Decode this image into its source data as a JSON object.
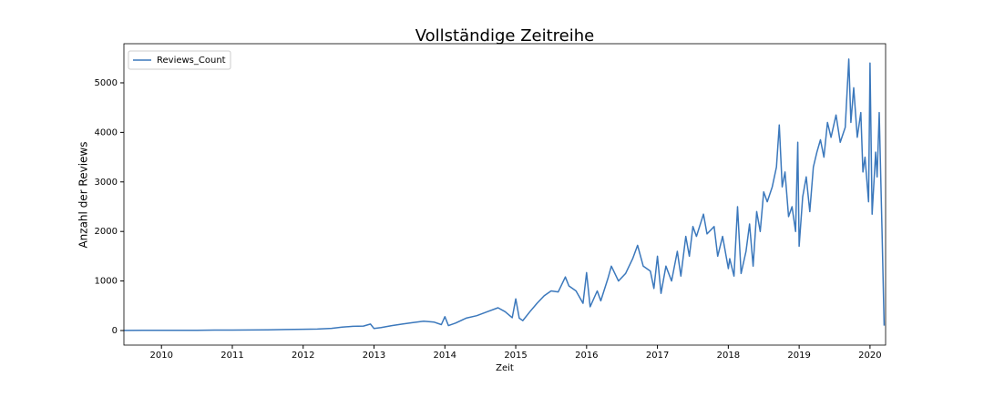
{
  "chart_data": {
    "type": "line",
    "title": "Vollständige Zeitreihe",
    "x_label": "Zeit",
    "y_label": "Anzahl der Reviews",
    "x": [
      2009.47,
      2009.75,
      2010.0,
      2010.25,
      2010.5,
      2010.75,
      2011.0,
      2011.25,
      2011.5,
      2011.75,
      2012.0,
      2012.2,
      2012.4,
      2012.55,
      2012.7,
      2012.85,
      2012.95,
      2013.0,
      2013.1,
      2013.25,
      2013.4,
      2013.55,
      2013.7,
      2013.85,
      2013.95,
      2014.0,
      2014.05,
      2014.15,
      2014.3,
      2014.45,
      2014.6,
      2014.75,
      2014.85,
      2014.95,
      2015.0,
      2015.05,
      2015.1,
      2015.2,
      2015.3,
      2015.4,
      2015.5,
      2015.6,
      2015.7,
      2015.75,
      2015.85,
      2015.95,
      2016.0,
      2016.05,
      2016.15,
      2016.2,
      2016.3,
      2016.35,
      2016.45,
      2016.55,
      2016.65,
      2016.72,
      2016.8,
      2016.9,
      2016.95,
      2017.0,
      2017.05,
      2017.12,
      2017.2,
      2017.28,
      2017.33,
      2017.4,
      2017.45,
      2017.5,
      2017.55,
      2017.65,
      2017.7,
      2017.8,
      2017.85,
      2017.92,
      2018.0,
      2018.02,
      2018.08,
      2018.13,
      2018.18,
      2018.25,
      2018.3,
      2018.35,
      2018.4,
      2018.45,
      2018.5,
      2018.55,
      2018.62,
      2018.68,
      2018.72,
      2018.76,
      2018.8,
      2018.85,
      2018.9,
      2018.95,
      2018.98,
      2019.0,
      2019.05,
      2019.1,
      2019.15,
      2019.2,
      2019.25,
      2019.3,
      2019.35,
      2019.4,
      2019.45,
      2019.52,
      2019.58,
      2019.65,
      2019.7,
      2019.73,
      2019.77,
      2019.82,
      2019.87,
      2019.9,
      2019.93,
      2019.98,
      2020.0,
      2020.03,
      2020.08,
      2020.1,
      2020.13,
      2020.17,
      2020.2
    ],
    "series": [
      {
        "name": "Reviews_Count",
        "color": "#3b78bc",
        "values": [
          2,
          3,
          4,
          5,
          6,
          9,
          10,
          12,
          15,
          20,
          25,
          30,
          45,
          70,
          85,
          90,
          130,
          40,
          60,
          100,
          130,
          160,
          190,
          170,
          120,
          280,
          100,
          150,
          250,
          300,
          380,
          460,
          380,
          260,
          640,
          250,
          200,
          380,
          550,
          700,
          800,
          780,
          1080,
          900,
          800,
          550,
          1170,
          480,
          800,
          600,
          1050,
          1300,
          1000,
          1150,
          1450,
          1720,
          1300,
          1200,
          850,
          1500,
          750,
          1300,
          1000,
          1600,
          1100,
          1900,
          1500,
          2100,
          1900,
          2350,
          1950,
          2100,
          1500,
          1900,
          1250,
          1450,
          1100,
          2500,
          1150,
          1600,
          2150,
          1300,
          2400,
          2000,
          2800,
          2600,
          2900,
          3300,
          4150,
          2900,
          3200,
          2300,
          2500,
          2000,
          3800,
          1700,
          2700,
          3100,
          2400,
          3300,
          3600,
          3850,
          3500,
          4200,
          3900,
          4350,
          3800,
          4100,
          5480,
          4200,
          4900,
          3900,
          4400,
          3200,
          3500,
          2600,
          5400,
          2350,
          3600,
          3100,
          4400,
          2000,
          100
        ]
      }
    ],
    "xlim": [
      2009.47,
      2020.22
    ],
    "xticks": [
      2010,
      2011,
      2012,
      2013,
      2014,
      2015,
      2016,
      2017,
      2018,
      2019,
      2020
    ],
    "ylim": [
      -294,
      5790
    ],
    "yticks": [
      0,
      1000,
      2000,
      3000,
      4000,
      5000
    ],
    "legend": "upper left"
  }
}
